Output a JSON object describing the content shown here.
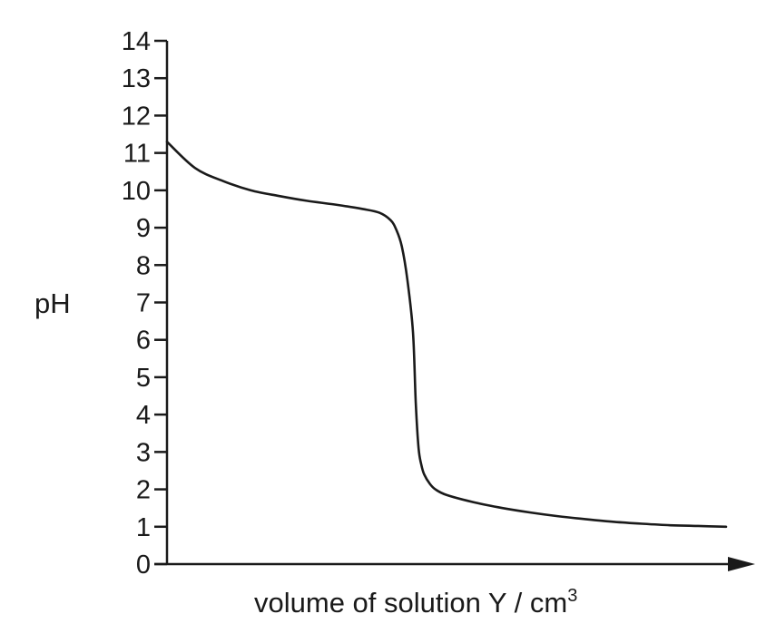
{
  "chart_data": {
    "type": "line",
    "title": "",
    "ylabel": "pH",
    "xlabel_main": "volume of solution Y / cm",
    "xlabel_superscript": "3",
    "ylim": [
      0,
      14
    ],
    "yticks": [
      "0",
      "1",
      "2",
      "3",
      "4",
      "5",
      "6",
      "7",
      "8",
      "9",
      "10",
      "11",
      "12",
      "13",
      "14"
    ],
    "xlim": [
      0,
      1
    ],
    "x_ticks_shown": false,
    "grid": false,
    "legend": "none",
    "line_color": "#1a1a1a",
    "series": [
      {
        "x": [
          0.0,
          0.05,
          0.1,
          0.15,
          0.2,
          0.25,
          0.3,
          0.35,
          0.38,
          0.4,
          0.41,
          0.42,
          0.43,
          0.44,
          0.445,
          0.45,
          0.455,
          0.46,
          0.47,
          0.48,
          0.5,
          0.55,
          0.6,
          0.65,
          0.7,
          0.75,
          0.8,
          0.85,
          0.9,
          0.95,
          1.0
        ],
        "y": [
          11.3,
          10.6,
          10.25,
          10.0,
          9.85,
          9.72,
          9.62,
          9.5,
          9.4,
          9.2,
          8.95,
          8.5,
          7.6,
          6.2,
          4.3,
          3.1,
          2.65,
          2.4,
          2.15,
          2.0,
          1.85,
          1.65,
          1.5,
          1.38,
          1.28,
          1.2,
          1.13,
          1.08,
          1.04,
          1.02,
          1.0
        ]
      }
    ]
  }
}
